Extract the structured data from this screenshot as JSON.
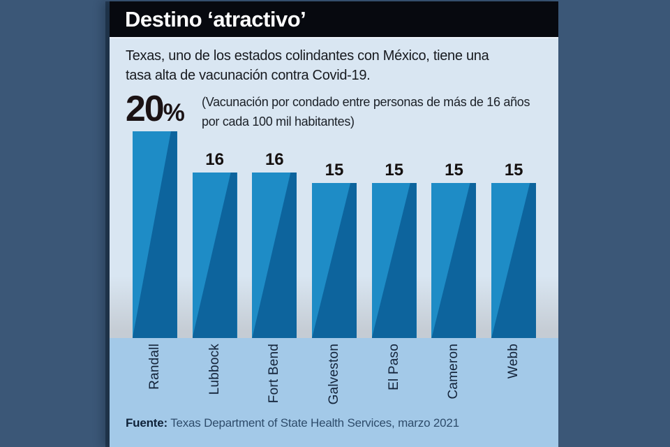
{
  "header": {
    "title": "Destino ‘atractivo’"
  },
  "intro": {
    "lines": [
      "Texas, uno de los estados colindantes con México, tiene una",
      "tasa alta de vacunación contra Covid-19."
    ]
  },
  "note": {
    "lines": [
      "(Vacunación por condado entre personas de más de 16 años",
      "por cada 100 mil habitantes)"
    ]
  },
  "chart_data": {
    "type": "bar",
    "title": "Destino ‘atractivo’",
    "subtitle": "Texas, uno de los estados colindantes con México, tiene una tasa alta de vacunación contra Covid-19.",
    "unit_note": "(Vacunación por condado entre personas de más de 16 años por cada 100 mil habitantes)",
    "categories": [
      "Randall",
      "Lubbock",
      "Fort Bend",
      "Galveston",
      "El Paso",
      "Cameron",
      "Webb"
    ],
    "values": [
      20,
      16,
      16,
      15,
      15,
      15,
      15
    ],
    "value_labels": [
      "20%",
      "16",
      "16",
      "15",
      "15",
      "15",
      "15"
    ],
    "ylim": [
      0,
      20
    ],
    "grid": false,
    "legend": false,
    "bar_colors": {
      "light": "#1e8cc6",
      "dark": "#0d649d"
    }
  },
  "footer": {
    "source_label": "Fuente:",
    "source_text": " Texas Department of State Health Services, marzo 2021"
  },
  "colors": {
    "background": "#3b5777",
    "header_bg": "#07090f",
    "panel_bg": "#d9e6f2",
    "baseline_gray": "#c5ccd4",
    "band_bg": "#a3c9e8",
    "county_label": "#132339",
    "source_text": "#2e4c6b"
  }
}
